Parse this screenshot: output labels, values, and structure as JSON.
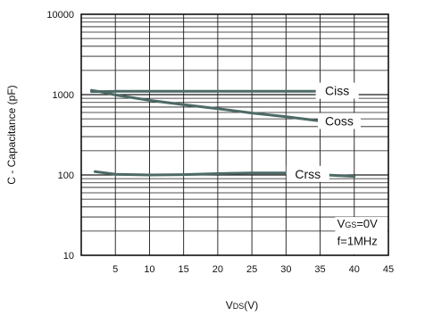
{
  "chart_data": {
    "type": "line",
    "ylabel": "C - Capacitance (pF)",
    "xlabel": {
      "main": "V",
      "sub": "DS",
      "tail": "(V)"
    },
    "xlim": [
      0,
      45
    ],
    "ylim": [
      10,
      10000
    ],
    "y_scale": "log",
    "grid": true,
    "x_ticks": [
      5,
      10,
      15,
      20,
      25,
      30,
      35,
      40,
      45
    ],
    "y_ticks": [
      10,
      100,
      1000,
      10000
    ],
    "y_tick_labels": [
      "10",
      "100",
      "1000",
      "10000"
    ],
    "colors": {
      "series": "#4d6a66",
      "grid": "#1a1a1a",
      "axis": "#000000"
    },
    "series": [
      {
        "name": "Ciss",
        "x": [
          1.5,
          5,
          10,
          20,
          30,
          40
        ],
        "y": [
          1090,
          1100,
          1100,
          1100,
          1100,
          1100
        ]
      },
      {
        "name": "Coss",
        "x": [
          1.5,
          3,
          5,
          10,
          15,
          20,
          25,
          30,
          35,
          40
        ],
        "y": [
          1130,
          1080,
          990,
          850,
          750,
          670,
          590,
          530,
          470,
          430
        ]
      },
      {
        "name": "Crss",
        "x": [
          2,
          5,
          10,
          15,
          20,
          25,
          30,
          35,
          40
        ],
        "y": [
          110,
          102,
          100,
          101,
          104,
          106,
          106,
          101,
          96
        ]
      }
    ],
    "annotations": {
      "vgs": {
        "main": "V",
        "sub": "GS",
        "tail": "=0V"
      },
      "freq": "f=1MHz"
    }
  }
}
